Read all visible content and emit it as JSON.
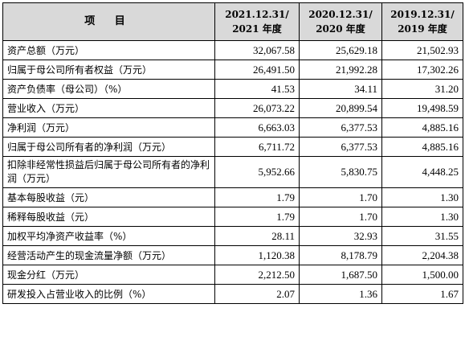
{
  "header": {
    "item": "项 目",
    "years": [
      {
        "line1": "2021.12.31/",
        "line2": "2021 年度"
      },
      {
        "line1": "2020.12.31/",
        "line2": "2020 年度"
      },
      {
        "line1": "2019.12.31/",
        "line2": "2019 年度"
      }
    ]
  },
  "rows": [
    {
      "label": "资产总额（万元）",
      "values": [
        "32,067.58",
        "25,629.18",
        "21,502.93"
      ]
    },
    {
      "label": "归属于母公司所有者权益（万元）",
      "values": [
        "26,491.50",
        "21,992.28",
        "17,302.26"
      ]
    },
    {
      "label": "资产负债率（母公司）（%）",
      "values": [
        "41.53",
        "34.11",
        "31.20"
      ]
    },
    {
      "label": "营业收入（万元）",
      "values": [
        "26,073.22",
        "20,899.54",
        "19,498.59"
      ]
    },
    {
      "label": "净利润（万元）",
      "values": [
        "6,663.03",
        "6,377.53",
        "4,885.16"
      ]
    },
    {
      "label": "归属于母公司所有者的净利润（万元）",
      "values": [
        "6,711.72",
        "6,377.53",
        "4,885.16"
      ]
    },
    {
      "label": "扣除非经常性损益后归属于母公司所有者的净利润（万元）",
      "values": [
        "5,952.66",
        "5,830.75",
        "4,448.25"
      ]
    },
    {
      "label": "基本每股收益（元）",
      "values": [
        "1.79",
        "1.70",
        "1.30"
      ]
    },
    {
      "label": "稀释每股收益（元）",
      "values": [
        "1.79",
        "1.70",
        "1.30"
      ]
    },
    {
      "label": "加权平均净资产收益率（%）",
      "values": [
        "28.11",
        "32.93",
        "31.55"
      ]
    },
    {
      "label": "经营活动产生的现金流量净额（万元）",
      "values": [
        "1,120.38",
        "8,178.79",
        "2,204.38"
      ]
    },
    {
      "label": "现金分红（万元）",
      "values": [
        "2,212.50",
        "1,687.50",
        "1,500.00"
      ]
    },
    {
      "label": "研发投入占营业收入的比例（%）",
      "values": [
        "2.07",
        "1.36",
        "1.67"
      ]
    }
  ]
}
